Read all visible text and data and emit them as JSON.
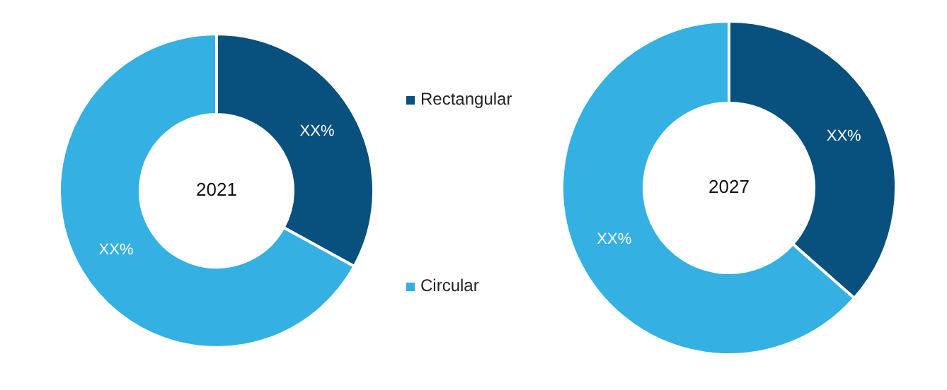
{
  "chart_data": [
    {
      "type": "donut",
      "title": "2021",
      "categories": [
        "Rectangular",
        "Circular"
      ],
      "values": [
        33,
        67
      ],
      "colors": [
        "#08507d",
        "#35b0e2"
      ],
      "value_labels": [
        "XX%",
        "XX%"
      ],
      "legend": "right"
    },
    {
      "type": "donut",
      "title": "2027",
      "categories": [
        null,
        null
      ],
      "values": [
        36.5,
        63.5
      ],
      "colors": [
        "#08507d",
        "#35b0e2"
      ],
      "value_labels": [
        "XX%",
        "XX%"
      ]
    }
  ]
}
